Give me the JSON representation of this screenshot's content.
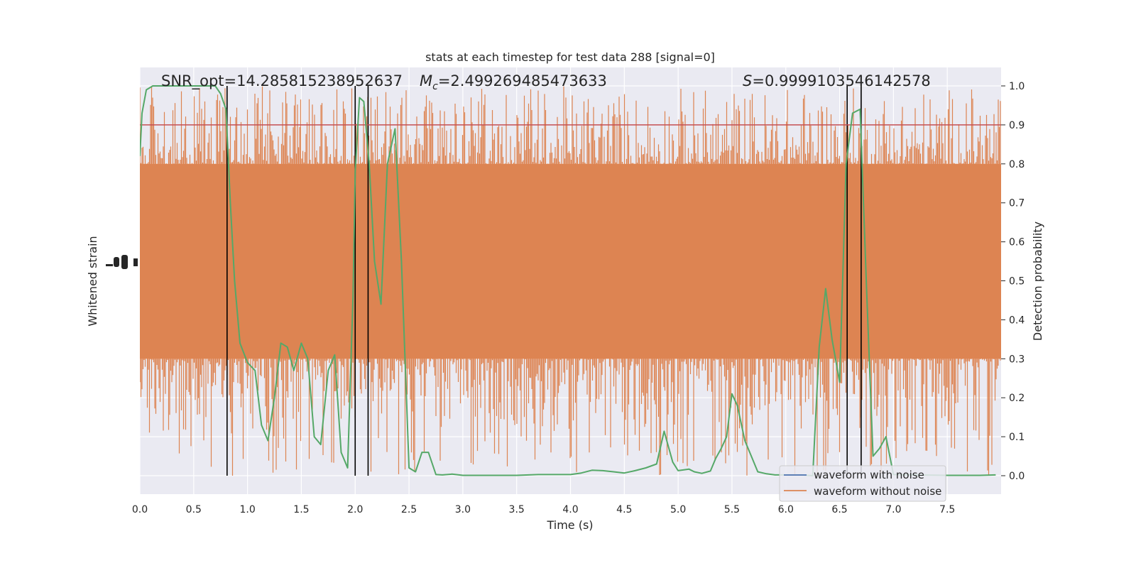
{
  "chart_data": {
    "type": "line",
    "title": "stats at each timestep for test data 288 [signal=0]",
    "xlabel": "Time (s)",
    "ylabel_left": "Whitened strain",
    "ylabel_right": "Detection probability",
    "xlim": [
      0.0,
      8.0
    ],
    "ylim_right": [
      -0.05,
      1.05
    ],
    "x_ticks": [
      "0.0",
      "0.5",
      "1.0",
      "1.5",
      "2.0",
      "2.5",
      "3.0",
      "3.5",
      "4.0",
      "4.5",
      "5.0",
      "5.5",
      "6.0",
      "6.5",
      "7.0",
      "7.5"
    ],
    "y_ticks_right": [
      "0.0",
      "0.1",
      "0.2",
      "0.3",
      "0.4",
      "0.5",
      "0.6",
      "0.7",
      "0.8",
      "0.9",
      "1.0"
    ],
    "grid": true,
    "legend_position": "lower-right",
    "annotations": {
      "snr": "SNR_opt=14.285815238952637",
      "mc_symbol": "M",
      "mc_subscript": "c",
      "mc_value": "=2.499269485473633",
      "s_symbol": "S",
      "s_value": "=0.9999103546142578"
    },
    "threshold": 0.9,
    "vertical_lines": [
      0.81,
      2.0,
      2.12,
      6.57,
      6.7
    ],
    "series": [
      {
        "name": "waveform with noise",
        "color": "#4c72b0"
      },
      {
        "name": "waveform without noise",
        "color": "#dd8452"
      }
    ],
    "noise_band": {
      "x_range": [
        0.0,
        8.0
      ],
      "core_range": [
        0.3,
        0.8
      ],
      "peak_range": [
        0.0,
        1.0
      ],
      "color": "#dd8452"
    },
    "probability": {
      "color": "#55a868",
      "x": [
        0.0,
        0.02,
        0.06,
        0.12,
        0.2,
        0.3,
        0.4,
        0.5,
        0.6,
        0.7,
        0.75,
        0.8,
        0.84,
        0.88,
        0.93,
        1.0,
        1.07,
        1.13,
        1.19,
        1.25,
        1.31,
        1.37,
        1.43,
        1.5,
        1.56,
        1.62,
        1.68,
        1.75,
        1.81,
        1.87,
        1.93,
        1.98,
        2.0,
        2.04,
        2.08,
        2.13,
        2.18,
        2.24,
        2.3,
        2.37,
        2.43,
        2.5,
        2.56,
        2.62,
        2.68,
        2.75,
        2.81,
        2.9,
        3.0,
        3.2,
        3.5,
        3.7,
        3.8,
        4.0,
        4.1,
        4.2,
        4.3,
        4.4,
        4.5,
        4.6,
        4.7,
        4.8,
        4.87,
        4.95,
        5.0,
        5.1,
        5.15,
        5.22,
        5.3,
        5.35,
        5.4,
        5.45,
        5.5,
        5.55,
        5.62,
        5.68,
        5.74,
        5.82,
        5.9,
        6.0,
        6.15,
        6.25,
        6.31,
        6.37,
        6.43,
        6.5,
        6.56,
        6.62,
        6.69,
        6.75,
        6.81,
        6.87,
        6.93,
        7.0,
        7.2,
        7.5,
        7.8,
        7.95
      ],
      "y": [
        0.82,
        0.93,
        0.99,
        1.0,
        1.0,
        1.0,
        1.0,
        1.0,
        1.0,
        1.0,
        0.98,
        0.94,
        0.7,
        0.5,
        0.34,
        0.29,
        0.27,
        0.13,
        0.09,
        0.2,
        0.34,
        0.33,
        0.27,
        0.34,
        0.3,
        0.1,
        0.08,
        0.27,
        0.31,
        0.06,
        0.02,
        0.46,
        0.78,
        0.97,
        0.96,
        0.8,
        0.55,
        0.44,
        0.8,
        0.89,
        0.55,
        0.02,
        0.01,
        0.06,
        0.06,
        0.003,
        0.002,
        0.004,
        0.001,
        0.001,
        0.001,
        0.003,
        0.003,
        0.003,
        0.007,
        0.014,
        0.013,
        0.01,
        0.007,
        0.013,
        0.02,
        0.03,
        0.114,
        0.035,
        0.013,
        0.017,
        0.01,
        0.006,
        0.012,
        0.045,
        0.07,
        0.1,
        0.21,
        0.18,
        0.09,
        0.05,
        0.01,
        0.005,
        0.002,
        0.002,
        0.002,
        0.0,
        0.33,
        0.48,
        0.35,
        0.24,
        0.8,
        0.93,
        0.94,
        0.48,
        0.05,
        0.07,
        0.1,
        0.003,
        0.002,
        0.001,
        0.001,
        0.002
      ]
    }
  }
}
